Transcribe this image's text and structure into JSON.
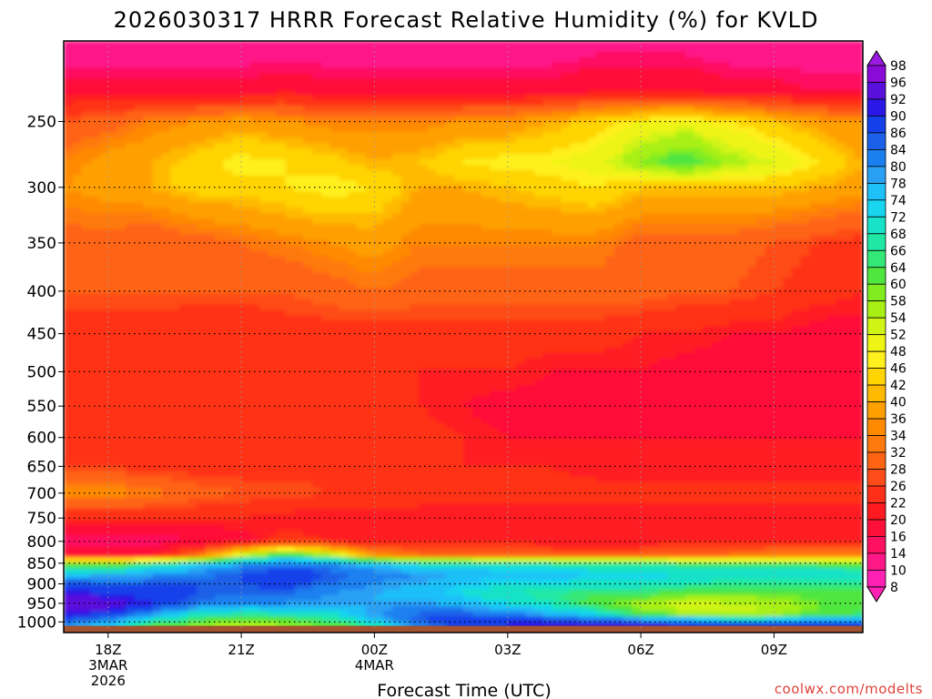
{
  "chart_data": {
    "type": "heatmap",
    "title": "2026030317 HRRR Forecast Relative Humidity (%) for KVLD",
    "xlabel": "Forecast Time (UTC)",
    "ylabel": "",
    "credit": "coolwx.com/modelts",
    "x_ticks": [
      {
        "label": "18Z",
        "date": "3MAR",
        "year": "2026",
        "hour": 0
      },
      {
        "label": "21Z",
        "date": "",
        "year": "",
        "hour": 3
      },
      {
        "label": "00Z",
        "date": "4MAR",
        "year": "",
        "hour": 6
      },
      {
        "label": "03Z",
        "date": "",
        "year": "",
        "hour": 9
      },
      {
        "label": "06Z",
        "date": "",
        "year": "",
        "hour": 12
      },
      {
        "label": "09Z",
        "date": "",
        "year": "",
        "hour": 15
      }
    ],
    "xlim_hours": [
      -1,
      17
    ],
    "y_ticks": [
      250,
      300,
      350,
      400,
      450,
      500,
      550,
      600,
      650,
      700,
      750,
      800,
      850,
      900,
      950,
      1000
    ],
    "ylim_hpa": [
      200,
      1030
    ],
    "y_scale": "log-pressure",
    "surface_pressure_hpa": 1011,
    "colorbar_levels": [
      "98",
      "96",
      "92",
      "90",
      "86",
      "84",
      "80",
      "78",
      "74",
      "72",
      "68",
      "66",
      "64",
      "60",
      "58",
      "54",
      "52",
      "48",
      "46",
      "42",
      "40",
      "36",
      "34",
      "32",
      "28",
      "26",
      "22",
      "20",
      "16",
      "14",
      "10",
      "8"
    ],
    "colorbar_colors": [
      "#9a1ae0",
      "#8a0ad8",
      "#5a10dc",
      "#2a18e6",
      "#1440ea",
      "#1a60e8",
      "#1a80f0",
      "#2aa0f4",
      "#1ec0f8",
      "#18d6f0",
      "#18e2c8",
      "#20e8a4",
      "#34e878",
      "#50e640",
      "#80ec20",
      "#a8f014",
      "#d0f414",
      "#eef414",
      "#fff01e",
      "#ffd400",
      "#ffba00",
      "#ffa000",
      "#ff8a00",
      "#ff7a0c",
      "#ff6414",
      "#ff4c18",
      "#ff3018",
      "#ff1a20",
      "#ff1038",
      "#ff1060",
      "#ff1888",
      "#ff20b4"
    ],
    "rh_profiles": {
      "pressure_levels": [
        200,
        230,
        250,
        280,
        300,
        350,
        400,
        450,
        500,
        550,
        600,
        650,
        700,
        750,
        800,
        830,
        850,
        875,
        900,
        925,
        950,
        975,
        1000,
        1010
      ],
      "columns": [
        {
          "hour": -1,
          "rh": [
            10,
            18,
            28,
            34,
            36,
            30,
            28,
            24,
            22,
            26,
            24,
            26,
            36,
            22,
            14,
            18,
            58,
            74,
            88,
            92,
            96,
            92,
            84,
            80
          ]
        },
        {
          "hour": 0,
          "rh": [
            10,
            18,
            30,
            38,
            38,
            30,
            28,
            24,
            22,
            26,
            24,
            26,
            36,
            22,
            14,
            18,
            58,
            76,
            86,
            90,
            94,
            90,
            80,
            74
          ]
        },
        {
          "hour": 1,
          "rh": [
            10,
            18,
            34,
            40,
            40,
            28,
            28,
            24,
            22,
            26,
            24,
            24,
            34,
            22,
            14,
            20,
            66,
            78,
            86,
            88,
            90,
            82,
            68,
            62
          ]
        },
        {
          "hour": 2,
          "rh": [
            10,
            18,
            36,
            44,
            44,
            30,
            28,
            22,
            22,
            24,
            26,
            24,
            30,
            22,
            16,
            30,
            72,
            82,
            86,
            86,
            84,
            72,
            62,
            58
          ]
        },
        {
          "hour": 3,
          "rh": [
            10,
            18,
            38,
            48,
            44,
            32,
            28,
            22,
            22,
            26,
            24,
            24,
            28,
            22,
            18,
            52,
            78,
            86,
            86,
            84,
            80,
            68,
            58,
            56
          ]
        },
        {
          "hour": 4,
          "rh": [
            10,
            20,
            36,
            46,
            46,
            34,
            28,
            24,
            24,
            26,
            24,
            24,
            28,
            20,
            24,
            64,
            82,
            90,
            88,
            84,
            80,
            70,
            60,
            58
          ]
        },
        {
          "hour": 5,
          "rh": [
            10,
            18,
            34,
            44,
            48,
            36,
            30,
            24,
            24,
            26,
            24,
            24,
            26,
            20,
            22,
            54,
            80,
            86,
            84,
            80,
            78,
            72,
            64,
            60
          ]
        },
        {
          "hour": 6,
          "rh": [
            10,
            18,
            34,
            40,
            46,
            38,
            32,
            24,
            22,
            26,
            24,
            22,
            26,
            20,
            20,
            36,
            74,
            82,
            80,
            78,
            78,
            80,
            74,
            68
          ]
        },
        {
          "hour": 7,
          "rh": [
            10,
            18,
            34,
            42,
            40,
            34,
            30,
            24,
            22,
            22,
            24,
            22,
            24,
            20,
            20,
            32,
            70,
            80,
            78,
            76,
            80,
            84,
            86,
            82
          ]
        },
        {
          "hour": 8,
          "rh": [
            10,
            18,
            36,
            46,
            40,
            34,
            30,
            24,
            22,
            20,
            22,
            22,
            24,
            20,
            20,
            32,
            68,
            78,
            74,
            72,
            76,
            84,
            90,
            88
          ]
        },
        {
          "hour": 9,
          "rh": [
            10,
            18,
            36,
            48,
            42,
            34,
            30,
            24,
            22,
            18,
            20,
            22,
            24,
            20,
            20,
            32,
            66,
            76,
            72,
            68,
            72,
            80,
            90,
            90
          ]
        },
        {
          "hour": 10,
          "rh": [
            10,
            18,
            40,
            48,
            44,
            34,
            30,
            24,
            20,
            18,
            20,
            22,
            24,
            20,
            20,
            30,
            66,
            76,
            72,
            66,
            68,
            76,
            90,
            92
          ]
        },
        {
          "hour": 11,
          "rh": [
            12,
            20,
            44,
            50,
            46,
            34,
            30,
            24,
            20,
            18,
            20,
            20,
            24,
            20,
            20,
            30,
            66,
            74,
            70,
            64,
            62,
            70,
            88,
            92
          ]
        },
        {
          "hour": 12,
          "rh": [
            12,
            20,
            48,
            58,
            42,
            30,
            30,
            22,
            20,
            18,
            20,
            20,
            24,
            20,
            20,
            30,
            66,
            74,
            70,
            64,
            56,
            60,
            86,
            92
          ]
        },
        {
          "hour": 13,
          "rh": [
            12,
            20,
            50,
            64,
            42,
            30,
            28,
            22,
            18,
            18,
            20,
            20,
            24,
            20,
            20,
            32,
            64,
            72,
            68,
            62,
            52,
            54,
            84,
            92
          ]
        },
        {
          "hour": 14,
          "rh": [
            10,
            18,
            46,
            56,
            42,
            30,
            28,
            20,
            18,
            18,
            20,
            20,
            24,
            20,
            20,
            32,
            64,
            72,
            66,
            60,
            54,
            52,
            80,
            90
          ]
        },
        {
          "hour": 15,
          "rh": [
            10,
            18,
            42,
            52,
            42,
            28,
            26,
            20,
            16,
            18,
            20,
            20,
            24,
            20,
            20,
            34,
            62,
            72,
            66,
            60,
            56,
            54,
            80,
            90
          ]
        },
        {
          "hour": 16,
          "rh": [
            10,
            16,
            38,
            46,
            40,
            26,
            24,
            18,
            16,
            18,
            20,
            20,
            24,
            20,
            20,
            34,
            62,
            72,
            66,
            62,
            60,
            60,
            82,
            90
          ]
        },
        {
          "hour": 17,
          "rh": [
            10,
            16,
            36,
            40,
            38,
            24,
            22,
            18,
            16,
            18,
            20,
            20,
            24,
            20,
            20,
            34,
            60,
            70,
            66,
            62,
            62,
            62,
            84,
            90
          ]
        }
      ]
    }
  }
}
